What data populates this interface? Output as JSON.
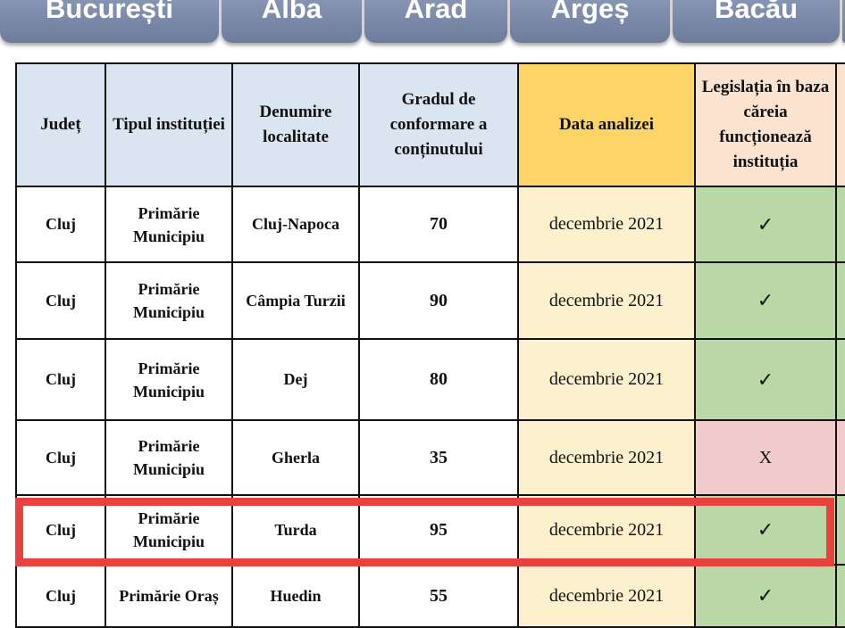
{
  "tabs": [
    "București",
    "Alba",
    "Arad",
    "Argeș",
    "Bacău"
  ],
  "headers": {
    "judet": "Județ",
    "tip": "Tipul instituției",
    "localitate": "Denumire localitate",
    "grad": "Gradul de conformare a conținutului",
    "data": "Data analizei",
    "legislatie": "Legislația în baza căreia funcționează instituția"
  },
  "rows": [
    {
      "judet": "Cluj",
      "tip": "Primărie Municipiu",
      "localitate": "Cluj-Napoca",
      "grad": "70",
      "data": "decembrie 2021",
      "legislatie": "✓"
    },
    {
      "judet": "Cluj",
      "tip": "Primărie Municipiu",
      "localitate": "Câmpia Turzii",
      "grad": "90",
      "data": "decembrie 2021",
      "legislatie": "✓"
    },
    {
      "judet": "Cluj",
      "tip": "Primărie Municipiu",
      "localitate": "Dej",
      "grad": "80",
      "data": "decembrie 2021",
      "legislatie": "✓"
    },
    {
      "judet": "Cluj",
      "tip": "Primărie Municipiu",
      "localitate": "Gherla",
      "grad": "35",
      "data": "decembrie 2021",
      "legislatie": "X"
    },
    {
      "judet": "Cluj",
      "tip": "Primărie Municipiu",
      "localitate": "Turda",
      "grad": "95",
      "data": "decembrie 2021",
      "legislatie": "✓"
    },
    {
      "judet": "Cluj",
      "tip": "Primărie Oraș",
      "localitate": "Huedin",
      "grad": "55",
      "data": "decembrie 2021",
      "legislatie": "✓"
    }
  ],
  "highlighted_row": "Turda",
  "colors": {
    "highlight": "#e8423f",
    "ok": "#b9d8a5",
    "no": "#f1cbcb",
    "header": "#dbe5f1",
    "date_header": "#fdd567"
  }
}
